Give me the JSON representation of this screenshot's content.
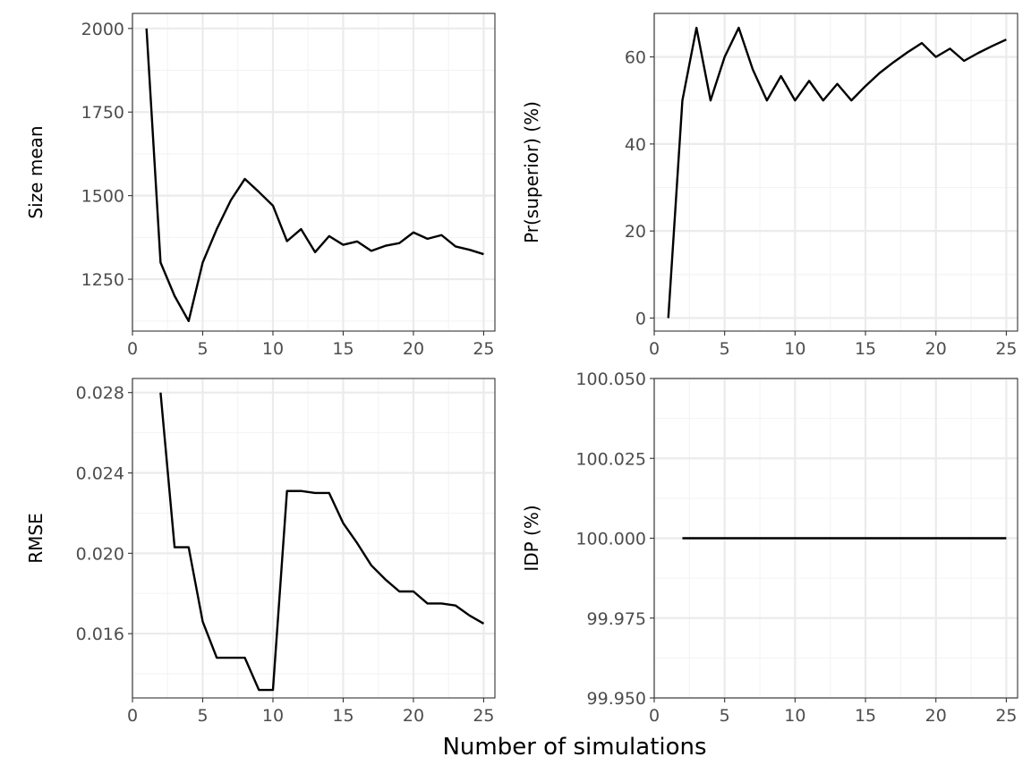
{
  "figure": {
    "x_title": "Number of simulations"
  },
  "chart_data": [
    {
      "type": "line",
      "title": "",
      "xlabel": "",
      "ylabel": "Size mean",
      "xlim": [
        0,
        25.8
      ],
      "ylim": [
        1095,
        2045
      ],
      "x_ticks": [
        0,
        5,
        10,
        15,
        20,
        25
      ],
      "y_ticks": [
        1250,
        1500,
        1750,
        2000
      ],
      "y_tick_labels": [
        "1250",
        "1500",
        "1750",
        "2000"
      ],
      "grid": true,
      "x": [
        1,
        2,
        3,
        4,
        5,
        6,
        7,
        8,
        9,
        10,
        11,
        12,
        13,
        14,
        15,
        16,
        17,
        18,
        19,
        20,
        21,
        22,
        23,
        24,
        25
      ],
      "y": [
        2000,
        1300,
        1200,
        1125,
        1300,
        1400,
        1486,
        1550,
        1511,
        1470,
        1364,
        1400,
        1331,
        1379,
        1353,
        1363,
        1335,
        1350,
        1358,
        1390,
        1371,
        1382,
        1348,
        1338,
        1325
      ]
    },
    {
      "type": "line",
      "title": "",
      "xlabel": "",
      "ylabel": "Pr(superior) (%)",
      "xlim": [
        0,
        25.8
      ],
      "ylim": [
        -3,
        70
      ],
      "x_ticks": [
        0,
        5,
        10,
        15,
        20,
        25
      ],
      "y_ticks": [
        0,
        20,
        40,
        60
      ],
      "y_tick_labels": [
        "0",
        "20",
        "40",
        "60"
      ],
      "grid": true,
      "x": [
        1,
        2,
        3,
        4,
        5,
        6,
        7,
        8,
        9,
        10,
        11,
        12,
        13,
        14,
        15,
        16,
        17,
        18,
        19,
        20,
        21,
        22,
        23,
        24,
        25
      ],
      "y": [
        0,
        50,
        66.7,
        50,
        60,
        66.7,
        57.1,
        50,
        55.6,
        50,
        54.5,
        50,
        53.8,
        50,
        53.3,
        56.3,
        58.8,
        61.1,
        63.2,
        60,
        61.9,
        59.1,
        60.9,
        62.5,
        64
      ]
    },
    {
      "type": "line",
      "title": "",
      "xlabel": "",
      "ylabel": "RMSE",
      "xlim": [
        0,
        25.8
      ],
      "ylim": [
        0.0128,
        0.0287
      ],
      "x_ticks": [
        0,
        5,
        10,
        15,
        20,
        25
      ],
      "y_ticks": [
        0.016,
        0.02,
        0.024,
        0.028
      ],
      "y_tick_labels": [
        "0.016",
        "0.020",
        "0.024",
        "0.028"
      ],
      "grid": true,
      "x": [
        2,
        3,
        4,
        5,
        6,
        7,
        8,
        9,
        10,
        11,
        12,
        13,
        14,
        15,
        16,
        17,
        18,
        19,
        20,
        21,
        22,
        23,
        24,
        25
      ],
      "y": [
        0.028,
        0.0203,
        0.0203,
        0.0166,
        0.0148,
        0.0148,
        0.0148,
        0.0132,
        0.0132,
        0.0231,
        0.0231,
        0.023,
        0.023,
        0.0215,
        0.0205,
        0.0194,
        0.0187,
        0.0181,
        0.0181,
        0.0175,
        0.0175,
        0.0174,
        0.0169,
        0.0165
      ]
    },
    {
      "type": "line",
      "title": "",
      "xlabel": "",
      "ylabel": "IDP (%)",
      "xlim": [
        0,
        25.8
      ],
      "ylim": [
        99.95,
        100.05
      ],
      "x_ticks": [
        0,
        5,
        10,
        15,
        20,
        25
      ],
      "y_ticks": [
        99.95,
        99.975,
        100,
        100.025,
        100.05
      ],
      "y_tick_labels": [
        "99.950",
        "99.975",
        "100.000",
        "100.025",
        "100.050"
      ],
      "grid": true,
      "x": [
        2,
        3,
        4,
        5,
        6,
        7,
        8,
        9,
        10,
        11,
        12,
        13,
        14,
        15,
        16,
        17,
        18,
        19,
        20,
        21,
        22,
        23,
        24,
        25
      ],
      "y": [
        100,
        100,
        100,
        100,
        100,
        100,
        100,
        100,
        100,
        100,
        100,
        100,
        100,
        100,
        100,
        100,
        100,
        100,
        100,
        100,
        100,
        100,
        100,
        100
      ]
    }
  ]
}
